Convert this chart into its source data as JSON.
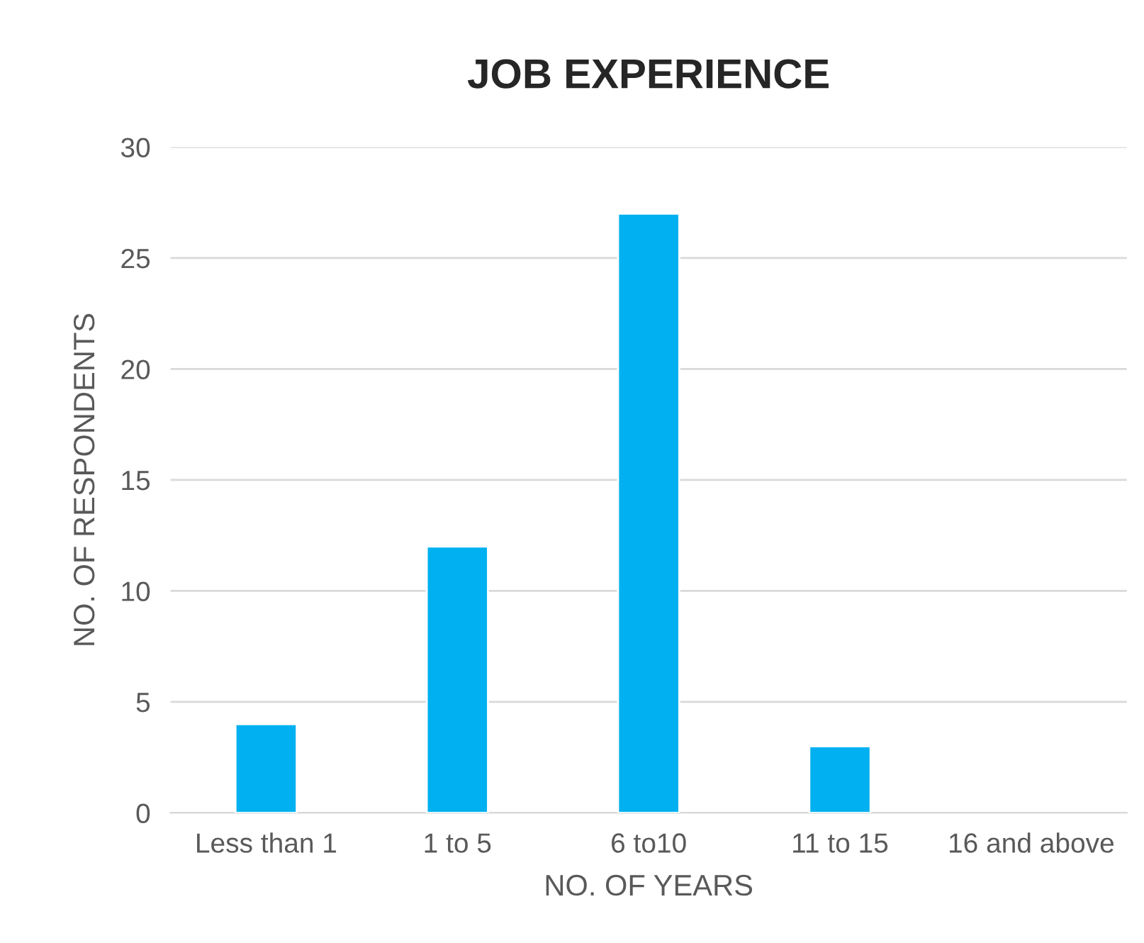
{
  "chart_data": {
    "type": "bar",
    "title": "JOB EXPERIENCE",
    "xlabel": "NO. OF YEARS",
    "ylabel": "NO. OF RESPONDENTS",
    "categories": [
      "Less than 1",
      "1 to 5",
      "6 to10",
      "11 to 15",
      "16 and above"
    ],
    "values": [
      4,
      12,
      27,
      3,
      null
    ],
    "color": "#00b0f0",
    "ylim": [
      0,
      30
    ],
    "yticks": [
      0,
      5,
      10,
      15,
      20,
      25,
      30
    ],
    "grid": "y",
    "legend": false
  }
}
